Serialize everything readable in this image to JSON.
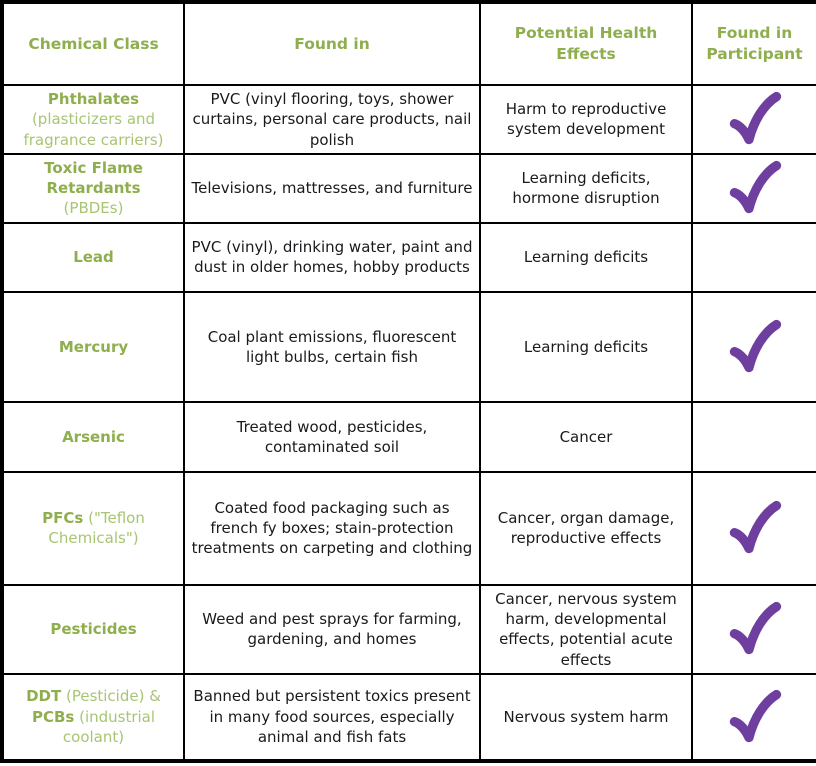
{
  "colors": {
    "heading_green": "#8FAE4D",
    "note_green": "#A8C573",
    "check_purple": "#6F3FA0",
    "border_black": "#000000",
    "text_ink": "#1a1a1e"
  },
  "icons": {
    "participant_true": "checkmark-icon"
  },
  "table": {
    "headers": [
      "Chemical Class",
      "Found in",
      "Potential Health Effects",
      "Found in Participant"
    ],
    "rows": [
      {
        "chemical": [
          {
            "text": "Phthalates",
            "style": "strong",
            "br": true
          },
          {
            "text": "(plasticizers and fragrance carriers)",
            "style": "light"
          }
        ],
        "found_in": "PVC (vinyl flooring, toys, shower curtains, personal care products, nail polish",
        "health_effects": "Harm to reproductive system development",
        "found_in_participant": true
      },
      {
        "chemical": [
          {
            "text": "Toxic Flame Retardants",
            "style": "strong",
            "br": true
          },
          {
            "text": "(PBDEs)",
            "style": "light"
          }
        ],
        "found_in": "Televisions, mattresses, and furniture",
        "health_effects": "Learning deficits, hormone disruption",
        "found_in_participant": true
      },
      {
        "chemical": [
          {
            "text": "Lead",
            "style": "strong"
          }
        ],
        "found_in": "PVC (vinyl), drinking water, paint and dust in older homes, hobby products",
        "health_effects": "Learning deficits",
        "found_in_participant": false
      },
      {
        "chemical": [
          {
            "text": "Mercury",
            "style": "strong"
          }
        ],
        "found_in": "Coal plant emissions, fluorescent light bulbs, certain fish",
        "health_effects": "Learning deficits",
        "found_in_participant": true
      },
      {
        "chemical": [
          {
            "text": "Arsenic",
            "style": "strong"
          }
        ],
        "found_in": "Treated wood, pesticides, contaminated soil",
        "health_effects": "Cancer",
        "found_in_participant": false
      },
      {
        "chemical": [
          {
            "text": "PFCs",
            "style": "strong"
          },
          {
            "text": " (\"Teflon Chemicals\")",
            "style": "light"
          }
        ],
        "found_in": "Coated food packaging such as french fy boxes; stain-protection treatments on carpeting and clothing",
        "health_effects": "Cancer, organ damage, reproductive effects",
        "found_in_participant": true
      },
      {
        "chemical": [
          {
            "text": "Pesticides",
            "style": "strong"
          }
        ],
        "found_in": "Weed and pest sprays for farming, gardening, and homes",
        "health_effects": "Cancer, nervous system harm, developmental effects, potential acute effects",
        "found_in_participant": true
      },
      {
        "chemical": [
          {
            "text": "DDT",
            "style": "strong"
          },
          {
            "text": " (Pesticide) & ",
            "style": "light"
          },
          {
            "text": "PCBs",
            "style": "strong"
          },
          {
            "text": " (industrial coolant)",
            "style": "light"
          }
        ],
        "found_in": "Banned but persistent toxics present in many food sources, especially animal and fish fats",
        "health_effects": "Nervous system harm",
        "found_in_participant": true
      }
    ]
  }
}
